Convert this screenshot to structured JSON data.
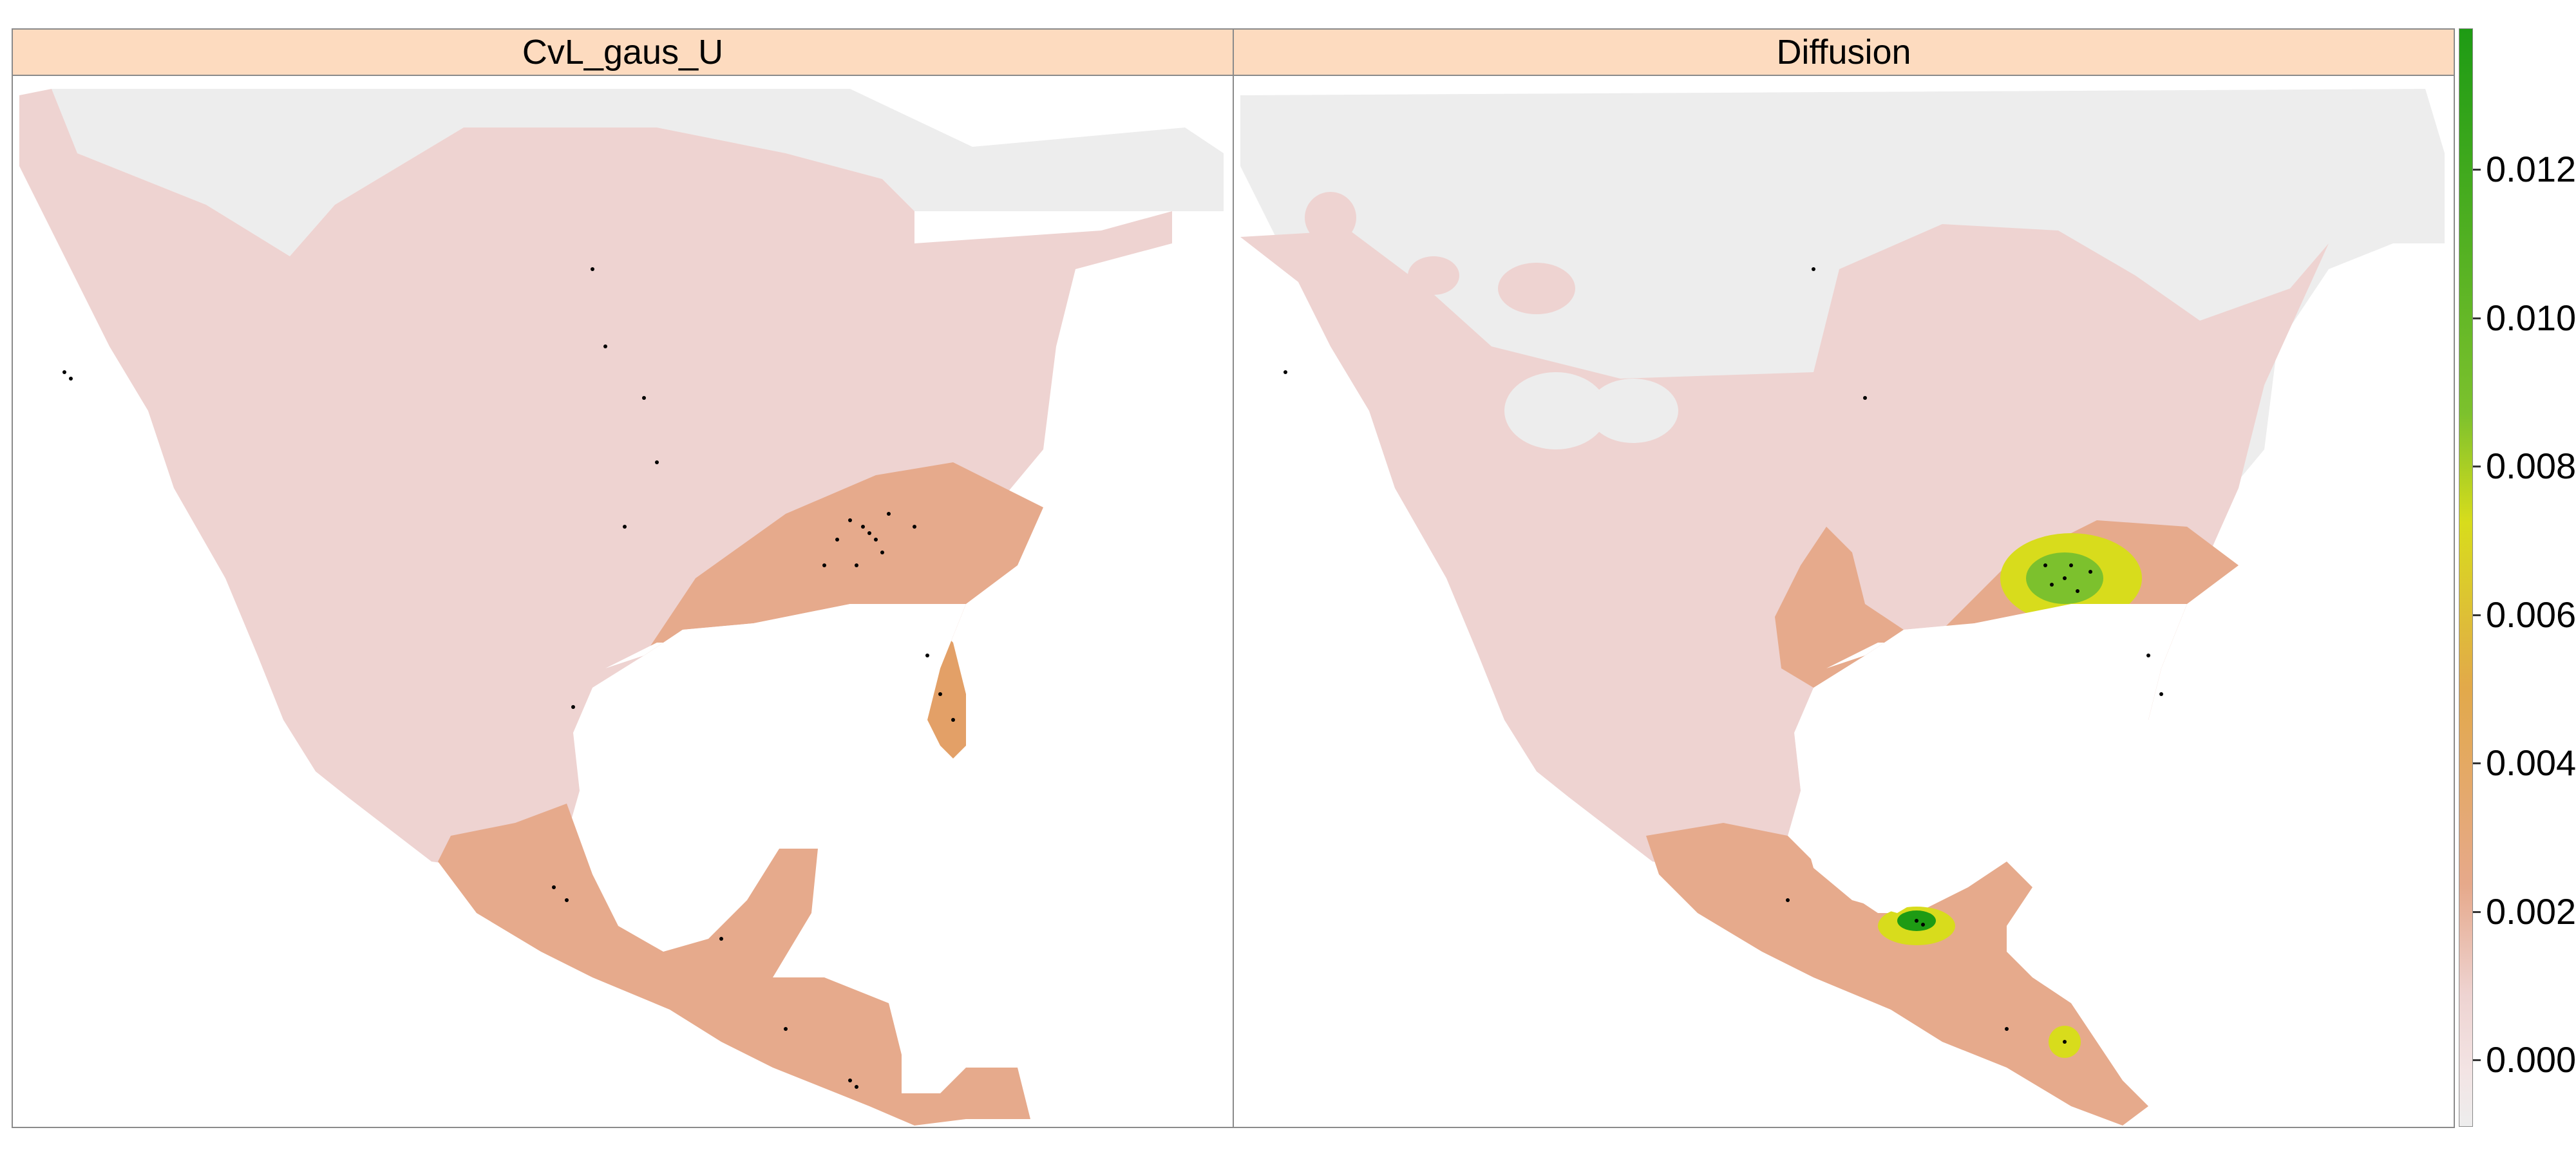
{
  "panels": [
    {
      "title": "CvL_gaus_U"
    },
    {
      "title": "Diffusion"
    }
  ],
  "legend": {
    "ticks": [
      {
        "label": "0.012",
        "value": 0.012
      },
      {
        "label": "0.010",
        "value": 0.01
      },
      {
        "label": "0.008",
        "value": 0.008
      },
      {
        "label": "0.006",
        "value": 0.006
      },
      {
        "label": "0.004",
        "value": 0.004
      },
      {
        "label": "0.002",
        "value": 0.002
      },
      {
        "label": "0.000",
        "value": 0.0
      }
    ],
    "range": [
      -0.0009,
      0.0139
    ],
    "colors": {
      "na": "#ededed",
      "zero": "#f3e4e4",
      "low": "#eed3d1",
      "mid": "#e6a98b",
      "orange": "#e2a94a",
      "yellow": "#d8dc1c",
      "green_light": "#7cc12d",
      "green_dark": "#1e9b14"
    }
  }
}
